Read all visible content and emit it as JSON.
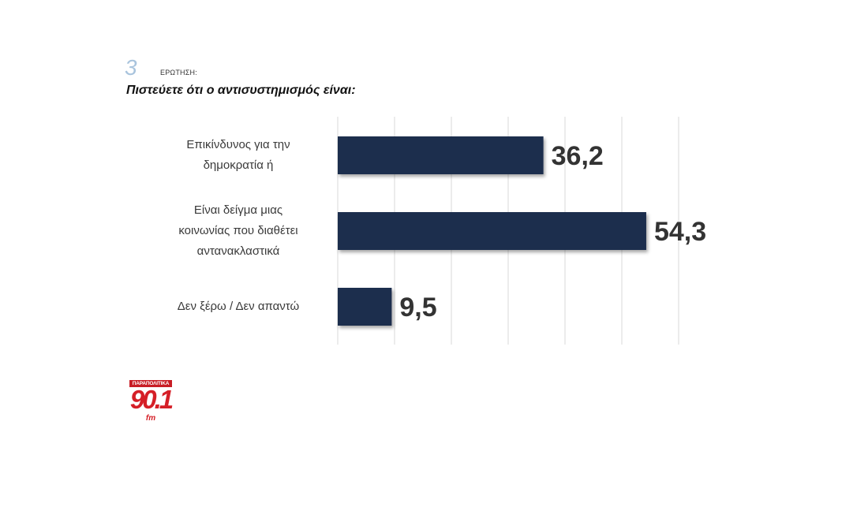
{
  "question": {
    "number": "3",
    "kicker": "ΕΡΩΤΗΣΗ:",
    "text": "Πιστεύετε ότι ο αντισυστημισμός είναι:"
  },
  "chart_data": {
    "type": "bar",
    "orientation": "horizontal",
    "categories": [
      [
        "Επικίνδυνος για την",
        "δημοκρατία ή"
      ],
      [
        "Είναι δείγμα μιας",
        "κοινωνίας που διαθέτει",
        "αντανακλαστικά"
      ],
      [
        "Δεν ξέρω / Δεν απαντώ"
      ]
    ],
    "values": [
      36.2,
      54.3,
      9.5
    ],
    "value_labels": [
      "36,2",
      "54,3",
      "9,5"
    ],
    "xlim": [
      0,
      60
    ],
    "grid": true,
    "bar_color": "#1f2d4d",
    "gridline_color": "#d9d9d9",
    "value_label_color": "#333333"
  },
  "logo": {
    "top_text": "ΠΑΡΑΠΟΛΙΤΙΚΑ",
    "frequency": "90.1",
    "band": "fm",
    "color": "#d51f27"
  }
}
